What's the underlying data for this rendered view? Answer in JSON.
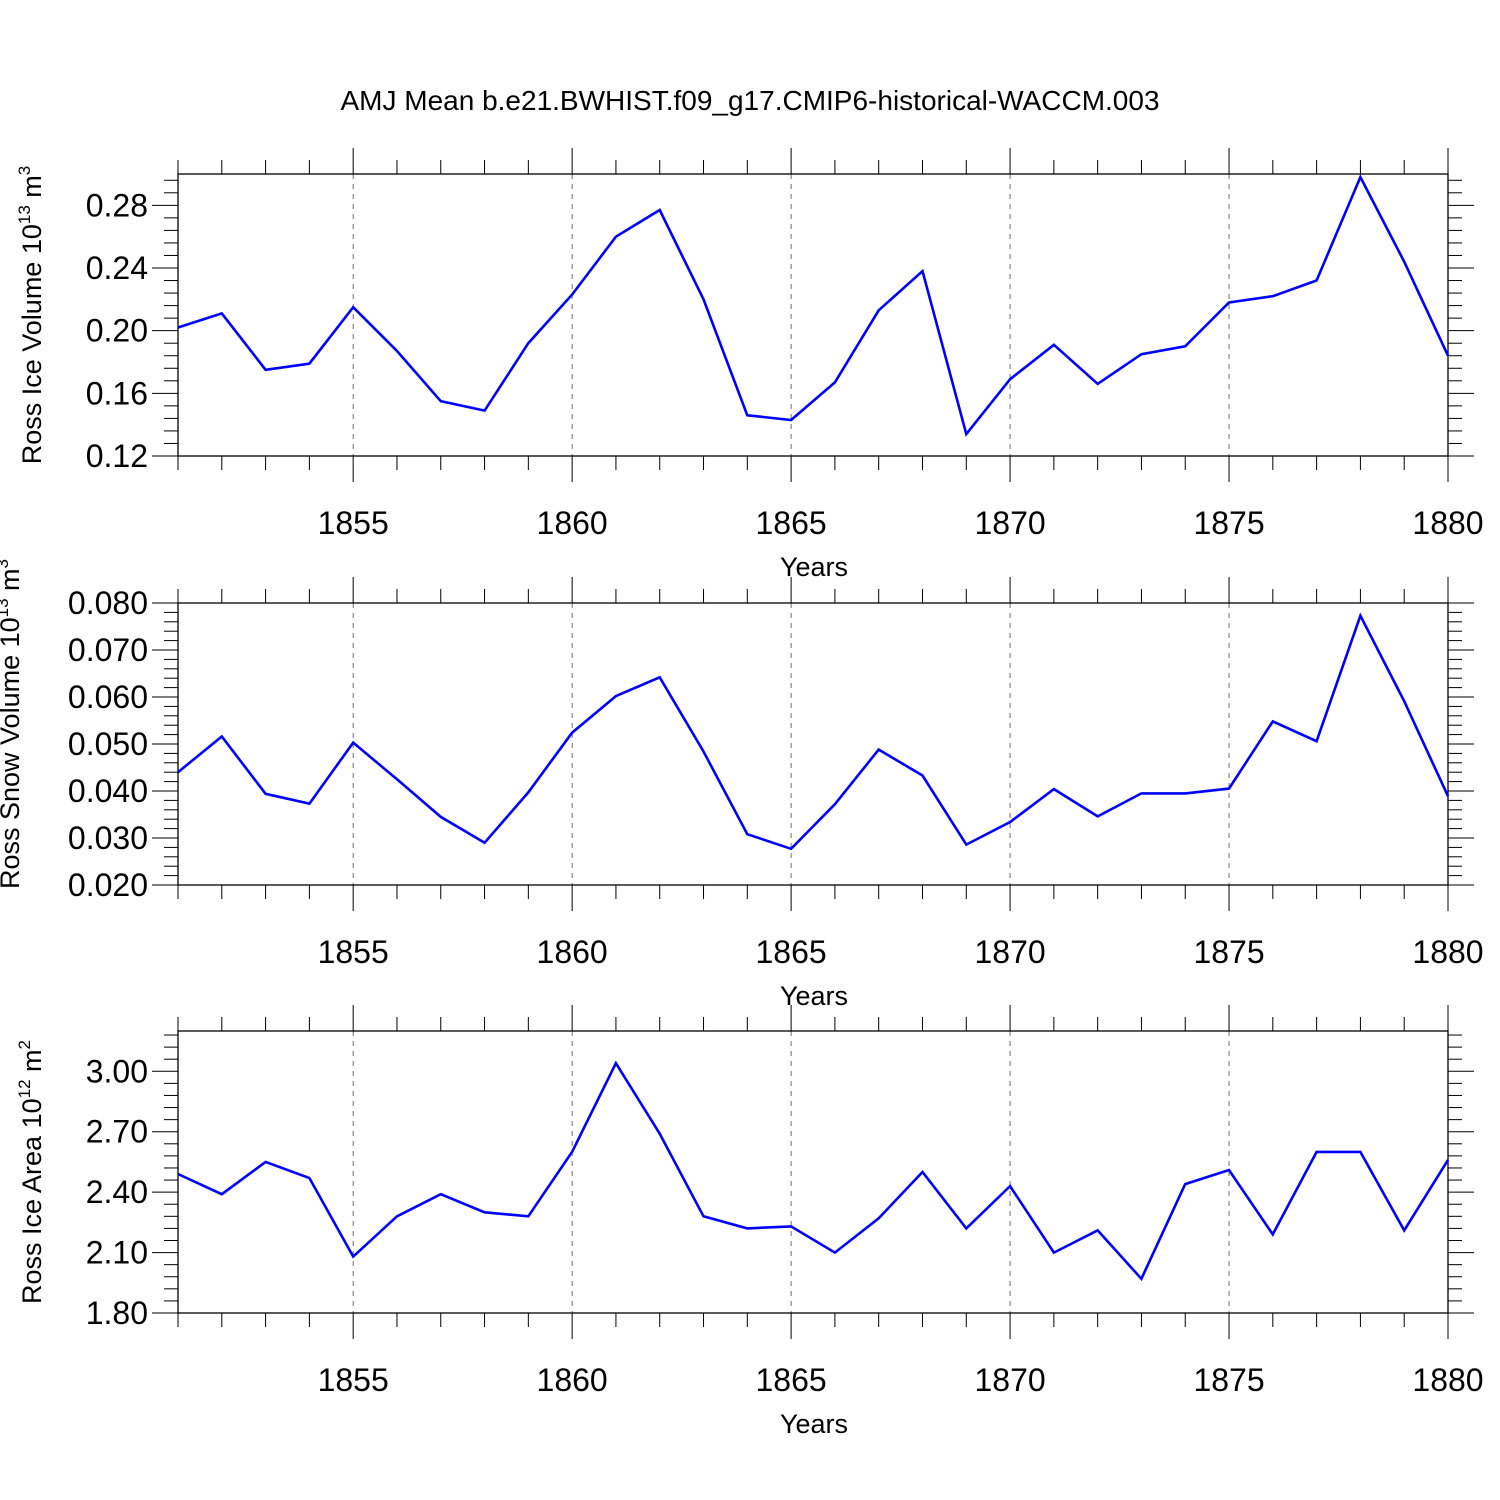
{
  "title": "AMJ Mean b.e21.BWHIST.f09_g17.CMIP6-historical-WACCM.003",
  "colors": {
    "line": "#0000ff",
    "axis": "#000000",
    "grid": "#000000"
  },
  "chart_data": [
    {
      "type": "line",
      "xlabel": "Years",
      "ylabel": {
        "prefix": "Ross Ice Volume 10",
        "exp1": "13",
        "mid": " m",
        "exp2": "3"
      },
      "xlim": [
        1851,
        1880
      ],
      "ylim": [
        0.12,
        0.3
      ],
      "xticks": [
        "1855",
        "1860",
        "1865",
        "1870",
        "1875",
        "1880"
      ],
      "yticks": [
        "0.12",
        "0.16",
        "0.20",
        "0.24",
        "0.28"
      ],
      "grid": "vertical dashed at major x ticks",
      "x": [
        1851,
        1852,
        1853,
        1854,
        1855,
        1856,
        1857,
        1858,
        1859,
        1860,
        1861,
        1862,
        1863,
        1864,
        1865,
        1866,
        1867,
        1868,
        1869,
        1870,
        1871,
        1872,
        1873,
        1874,
        1875,
        1876,
        1877,
        1878,
        1879,
        1880
      ],
      "values": [
        0.202,
        0.211,
        0.175,
        0.179,
        0.215,
        0.187,
        0.155,
        0.149,
        0.192,
        0.223,
        0.26,
        0.277,
        0.22,
        0.146,
        0.143,
        0.167,
        0.213,
        0.238,
        0.134,
        0.169,
        0.191,
        0.166,
        0.185,
        0.19,
        0.218,
        0.222,
        0.232,
        0.298,
        0.244,
        0.184
      ]
    },
    {
      "type": "line",
      "xlabel": "Years",
      "ylabel": {
        "prefix": "Ross Snow Volume 10",
        "exp1": "13",
        "mid": " m",
        "exp2": "3"
      },
      "xlim": [
        1851,
        1880
      ],
      "ylim": [
        0.02,
        0.08
      ],
      "xticks": [
        "1855",
        "1860",
        "1865",
        "1870",
        "1875",
        "1880"
      ],
      "yticks": [
        "0.020",
        "0.030",
        "0.040",
        "0.050",
        "0.060",
        "0.070",
        "0.080"
      ],
      "grid": "vertical dashed at major x ticks",
      "x": [
        1851,
        1852,
        1853,
        1854,
        1855,
        1856,
        1857,
        1858,
        1859,
        1860,
        1861,
        1862,
        1863,
        1864,
        1865,
        1866,
        1867,
        1868,
        1869,
        1870,
        1871,
        1872,
        1873,
        1874,
        1875,
        1876,
        1877,
        1878,
        1879,
        1880
      ],
      "values": [
        0.044,
        0.0516,
        0.0394,
        0.0373,
        0.0503,
        0.0425,
        0.0345,
        0.029,
        0.0397,
        0.0524,
        0.0602,
        0.0642,
        0.0484,
        0.0308,
        0.0277,
        0.0372,
        0.0488,
        0.0433,
        0.0286,
        0.0334,
        0.0404,
        0.0346,
        0.0395,
        0.0395,
        0.0405,
        0.0548,
        0.0506,
        0.0773,
        0.0591,
        0.0389
      ]
    },
    {
      "type": "line",
      "xlabel": "Years",
      "ylabel": {
        "prefix": "Ross Ice Area 10",
        "exp1": "12",
        "mid": " m",
        "exp2": "2"
      },
      "xlim": [
        1851,
        1880
      ],
      "ylim": [
        1.8,
        3.2
      ],
      "xticks": [
        "1855",
        "1860",
        "1865",
        "1870",
        "1875",
        "1880"
      ],
      "yticks": [
        "1.80",
        "2.10",
        "2.40",
        "2.70",
        "3.00"
      ],
      "grid": "vertical dashed at major x ticks",
      "x": [
        1851,
        1852,
        1853,
        1854,
        1855,
        1856,
        1857,
        1858,
        1859,
        1860,
        1861,
        1862,
        1863,
        1864,
        1865,
        1866,
        1867,
        1868,
        1869,
        1870,
        1871,
        1872,
        1873,
        1874,
        1875,
        1876,
        1877,
        1878,
        1879,
        1880
      ],
      "values": [
        2.49,
        2.39,
        2.55,
        2.47,
        2.08,
        2.28,
        2.39,
        2.3,
        2.28,
        2.6,
        3.04,
        2.69,
        2.28,
        2.22,
        2.23,
        2.1,
        2.27,
        2.5,
        2.22,
        2.43,
        2.1,
        2.21,
        1.97,
        2.44,
        2.51,
        2.19,
        2.6,
        2.6,
        2.21,
        2.56
      ]
    }
  ]
}
